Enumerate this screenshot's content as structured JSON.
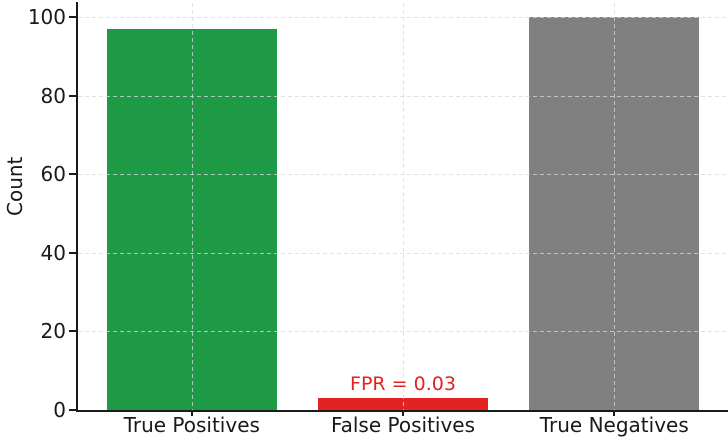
{
  "chart_data": {
    "type": "bar",
    "categories": [
      "True Positives",
      "False Positives",
      "True Negatives"
    ],
    "values": [
      97,
      3,
      100
    ],
    "bar_colors": [
      "#1e9a46",
      "#e32222",
      "#808080"
    ],
    "title": "",
    "xlabel": "",
    "ylabel": "Count",
    "yticks": [
      0,
      20,
      40,
      60,
      80,
      100
    ],
    "ylim": [
      0,
      103
    ],
    "grid": "dashed light-gray horizontal and vertical gridlines drawn over bars",
    "legend_position": "none",
    "axis_color": "#1a1a1a",
    "annotation": {
      "text": "FPR = 0.03",
      "color": "#e32222",
      "above_category": "False Positives"
    }
  }
}
